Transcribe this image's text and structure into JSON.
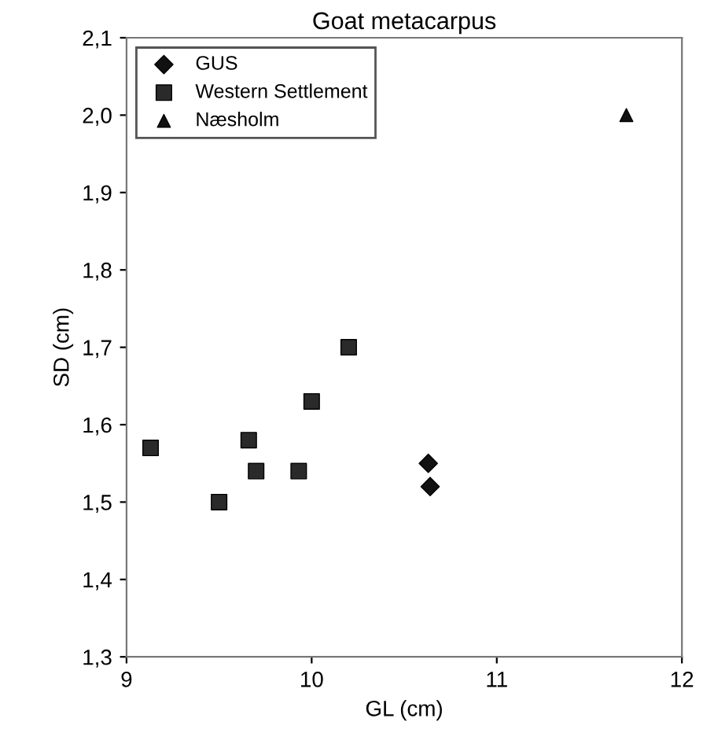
{
  "chart_data": {
    "type": "scatter",
    "title": "Goat metacarpus",
    "xlabel": "GL (cm)",
    "ylabel": "SD (cm)",
    "series": [
      {
        "name": "GUS",
        "color": "#111111",
        "marker": "diamond",
        "x": [
          10.63,
          10.64
        ],
        "values": [
          1.55,
          1.52
        ]
      },
      {
        "name": "Western Settlement",
        "color": "#2a2a2a",
        "marker": "square",
        "x": [
          9.13,
          9.5,
          9.66,
          9.7,
          9.93,
          10.0,
          10.2
        ],
        "values": [
          1.57,
          1.5,
          1.58,
          1.54,
          1.54,
          1.63,
          1.7
        ]
      },
      {
        "name": "Næsholm",
        "color": "#111111",
        "marker": "triangle",
        "x": [
          11.7
        ],
        "values": [
          2.0
        ]
      }
    ],
    "xlim": [
      9,
      12
    ],
    "xticks": [
      9,
      10,
      11,
      12
    ],
    "ylim": [
      1.3,
      2.1
    ],
    "yticks": [
      {
        "value": 1.3,
        "label": "1,3"
      },
      {
        "value": 1.4,
        "label": "1,4"
      },
      {
        "value": 1.5,
        "label": "1,5"
      },
      {
        "value": 1.6,
        "label": "1,6"
      },
      {
        "value": 1.7,
        "label": "1,7"
      },
      {
        "value": 1.8,
        "label": "1,8"
      },
      {
        "value": 1.9,
        "label": "1,9"
      },
      {
        "value": 2.0,
        "label": "2,0"
      },
      {
        "value": 2.1,
        "label": "2,1"
      }
    ],
    "grid": false,
    "legend": "top left"
  }
}
